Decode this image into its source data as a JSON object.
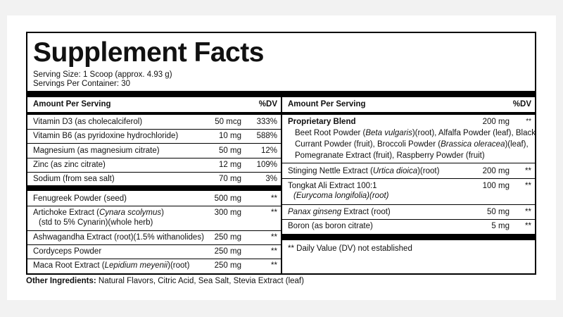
{
  "title": "Supplement Facts",
  "serving_size": "Serving Size: 1 Scoop (approx. 4.93 g)",
  "servings_per_container": "Servings Per Container: 30",
  "left_header": {
    "amount": "Amount Per Serving",
    "dv": "%DV"
  },
  "right_header": {
    "amount": "Amount Per Serving",
    "dv": "%DV"
  },
  "left_rows": [
    {
      "name": "Vitamin D3 (as cholecalciferol)",
      "amount": "50 mcg",
      "dv": "333%"
    },
    {
      "name": "Vitamin B6 (as pyridoxine hydrochloride)",
      "amount": "10 mg",
      "dv": "588%"
    },
    {
      "name": "Magnesium (as magnesium citrate)",
      "amount": "50 mg",
      "dv": "12%"
    },
    {
      "name": "Zinc (as zinc citrate)",
      "amount": "12 mg",
      "dv": "109%"
    },
    {
      "name": "Sodium (from sea salt)",
      "amount": "70 mg",
      "dv": "3%"
    }
  ],
  "left_rows2": [
    {
      "name": "Fenugreek Powder (seed)",
      "amount": "500 mg",
      "dv": "**"
    },
    {
      "name_a": "Artichoke Extract (",
      "name_i": "Cynara scolymus",
      "name_b": ")",
      "name2": "(std to 5% Cynarin)(whole herb)",
      "amount": "300 mg",
      "dv": "**"
    },
    {
      "name": "Ashwagandha Extract (root)(1.5% withanolides)",
      "amount": "250 mg",
      "dv": "**"
    },
    {
      "name": "Cordyceps Powder",
      "amount": "250 mg",
      "dv": "**"
    },
    {
      "name_a": "Maca Root Extract (",
      "name_i": "Lepidium meyenii",
      "name_b": ")(root)",
      "amount": "250 mg",
      "dv": "**"
    }
  ],
  "blend": {
    "name": "Proprietary Blend",
    "amount": "200 mg",
    "dv": "**",
    "line1_a": "Beet Root Powder (",
    "line1_i": "Beta vulgaris",
    "line1_b": ")(root), Alfalfa Powder (leaf), Black",
    "line2_a": "Currant Powder (fruit), Broccoli Powder (",
    "line2_i": "Brassica oleracea",
    "line2_b": ")(leaf),",
    "line3": "Pomegranate Extract (fruit), Raspberry Powder (fruit)"
  },
  "right_rows": [
    {
      "name_a": "Stinging Nettle Extract (",
      "name_i": "Urtica dioica",
      "name_b": ")(root)",
      "amount": "200 mg",
      "dv": "**"
    },
    {
      "name": "Tongkat Ali Extract 100:1",
      "name2": "(Eurycoma longifolia)(root)",
      "amount": "100 mg",
      "dv": "**"
    },
    {
      "name_i": "Panax ginseng",
      "name_b": " Extract (root)",
      "amount": "50 mg",
      "dv": "**"
    },
    {
      "name": "Boron (as boron citrate)",
      "amount": "5 mg",
      "dv": "**"
    }
  ],
  "footnote": "** Daily Value (DV) not established",
  "other_label": "Other Ingredients:",
  "other_text": " Natural Flavors, Citric Acid, Sea Salt, Stevia Extract (leaf)"
}
